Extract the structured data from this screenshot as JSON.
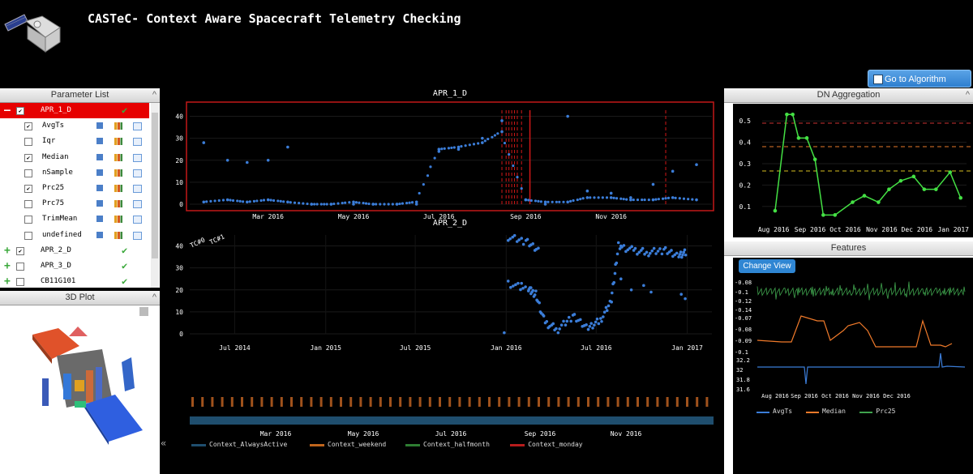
{
  "header": {
    "title": "CASTeC- Context Aware Spacecraft Telemetry Checking",
    "logo": "satellite-icon"
  },
  "algo_button": {
    "label": "Go to Algorithm Launcher",
    "icon": "launcher-icon"
  },
  "param_panel": {
    "title": "Parameter List",
    "collapse_icon": "^",
    "rows": [
      {
        "label": "APR_1_D",
        "checked": true,
        "toggle": "—",
        "status": "✔",
        "selected": true
      },
      {
        "label": "AvgTs",
        "checked": true
      },
      {
        "label": "Iqr",
        "checked": false
      },
      {
        "label": "Median",
        "checked": true
      },
      {
        "label": "nSample",
        "checked": false
      },
      {
        "label": "Prc25",
        "checked": true
      },
      {
        "label": "Prc75",
        "checked": false
      },
      {
        "label": "TrimMean",
        "checked": false
      },
      {
        "label": "undefined",
        "checked": false
      },
      {
        "label": "APR_2_D",
        "checked": true,
        "toggle": "+",
        "status": "✔"
      },
      {
        "label": "APR_3_D",
        "checked": false,
        "toggle": "+",
        "status": "✔"
      },
      {
        "label": "CB11G101",
        "checked": false,
        "toggle": "+",
        "status": "✔"
      }
    ],
    "check_mark": "✔"
  },
  "plot3d_panel": {
    "title": "3D Plot",
    "collapse_icon": "^"
  },
  "center": {
    "expand_left": "«",
    "chart1": {
      "title": "APR_1_D",
      "y_ticks": [
        "40",
        "30",
        "20",
        "10",
        "0"
      ],
      "x_ticks": [
        "Mar 2016",
        "May 2016",
        "Jul 2016",
        "Sep 2016",
        "Nov 2016"
      ]
    },
    "chart2": {
      "title": "APR_2_D",
      "annotations": [
        "TC#0",
        "TC#1"
      ],
      "y_ticks": [
        "40",
        "30",
        "20",
        "10",
        "0"
      ],
      "x_ticks": [
        "Jul 2014",
        "Jan 2015",
        "Jul 2015",
        "Jan 2016",
        "Jul 2016",
        "Jan 2017"
      ]
    },
    "context_chart": {
      "x_ticks": [
        "Mar 2016",
        "May 2016",
        "Jul 2016",
        "Sep 2016",
        "Nov 2016"
      ],
      "legend": [
        {
          "label": "Context_AlwaysActive",
          "color": "#1f4e6e"
        },
        {
          "label": "Context_weekend",
          "color": "#c0651c"
        },
        {
          "label": "Context_halfmonth",
          "color": "#2e7d32"
        },
        {
          "label": "Context_monday",
          "color": "#b71c1c"
        }
      ]
    }
  },
  "dn_panel": {
    "title": "DN Aggregation",
    "collapse_icon": "^",
    "expand_left": "«",
    "y_ticks": [
      "0.5",
      "0.4",
      "0.3",
      "0.2",
      "0.1"
    ],
    "x_ticks": [
      "Aug 2016",
      "Sep 2016",
      "Oct 2016",
      "Nov 2016",
      "Dec 2016",
      "Jan 2017"
    ]
  },
  "features_panel": {
    "title": "Features",
    "change_view_label": "Change View",
    "y_ticks_top": [
      "-0.08",
      "-0.1",
      "-0.12",
      "-0.14"
    ],
    "y_ticks_mid": [
      "-0.07",
      "-0.08",
      "-0.09",
      "-0.1"
    ],
    "y_ticks_bot": [
      "32.2",
      "32",
      "31.8",
      "31.6"
    ],
    "x_ticks": [
      "Aug 2016",
      "Sep 2016",
      "Oct 2016",
      "Nov 2016",
      "Dec 2016"
    ],
    "legend": [
      {
        "label": "AvgTs",
        "color": "#3b7dd8"
      },
      {
        "label": "Median",
        "color": "#f07a2a"
      },
      {
        "label": "Prc25",
        "color": "#3fa34d"
      }
    ]
  },
  "chart_data": [
    {
      "type": "scatter",
      "title": "APR_1_D",
      "ylim": [
        0,
        45
      ],
      "x": [
        "2016-01-15",
        "2016-02-01",
        "2016-02-15",
        "2016-03-01",
        "2016-03-15",
        "2016-04-01",
        "2016-04-15",
        "2016-05-01",
        "2016-05-15",
        "2016-06-01",
        "2016-06-15",
        "2016-07-01",
        "2016-07-15",
        "2016-08-01",
        "2016-08-15",
        "2016-09-01",
        "2016-09-15",
        "2016-10-01",
        "2016-10-15",
        "2016-11-01",
        "2016-11-15",
        "2016-12-01",
        "2016-12-15",
        "2017-01-01"
      ],
      "series": [
        {
          "values": [
            1,
            2,
            1,
            2,
            1,
            0,
            0,
            1,
            0,
            0,
            1,
            25,
            26,
            28,
            33,
            2,
            1,
            1,
            3,
            3,
            2,
            2,
            3,
            2
          ],
          "color": "#3b7dd8"
        },
        {
          "values": [
            28,
            20,
            19,
            20,
            26,
            0,
            0,
            0,
            0,
            0,
            0,
            24,
            25,
            30,
            38,
            2,
            0,
            40,
            6,
            5,
            3,
            9,
            15,
            18
          ],
          "color": "#3b7dd8"
        }
      ]
    },
    {
      "type": "line",
      "title": "DN Aggregation",
      "x": [
        "2016-08-05",
        "2016-08-15",
        "2016-08-20",
        "2016-08-25",
        "2016-09-01",
        "2016-09-08",
        "2016-09-15",
        "2016-09-25",
        "2016-10-10",
        "2016-10-20",
        "2016-11-01",
        "2016-11-10",
        "2016-11-20",
        "2016-12-01",
        "2016-12-10",
        "2016-12-20",
        "2017-01-01",
        "2017-01-10"
      ],
      "series": [
        {
          "values": [
            0.08,
            0.53,
            0.53,
            0.42,
            0.42,
            0.32,
            0.06,
            0.06,
            0.12,
            0.15,
            0.12,
            0.18,
            0.22,
            0.24,
            0.18,
            0.18,
            0.26,
            0.14
          ],
          "color": "#44e044"
        }
      ],
      "ylim": [
        0.05,
        0.55
      ]
    }
  ]
}
